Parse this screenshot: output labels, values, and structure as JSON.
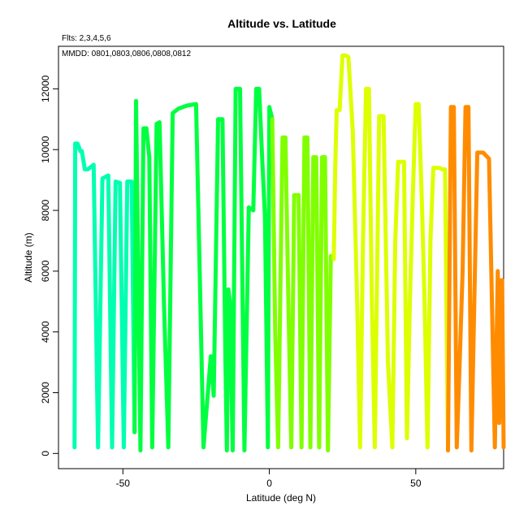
{
  "chart_data": {
    "type": "line",
    "title": "Altitude vs. Latitude",
    "xlabel": "Latitude (deg N)",
    "ylabel": "Altitude (m)",
    "annotations": {
      "fits": "Flts: 2,3,4,5,6",
      "mmdd": "MMDD: 0801,0803,0806,0808,0812"
    },
    "xlim": [
      -72,
      80
    ],
    "ylim": [
      -500,
      13400
    ],
    "x_ticks": [
      -50,
      0,
      50
    ],
    "y_ticks": [
      0,
      2000,
      4000,
      6000,
      8000,
      10000,
      12000
    ],
    "grid": false,
    "series": [
      {
        "color": "#00ffb0",
        "x": [
          -66.5,
          -66.3,
          -65.5,
          -64.5,
          -64,
          -63,
          -62,
          -60,
          -58.5,
          -57,
          -56,
          -55,
          -53.7,
          -52.5,
          -51,
          -49.7,
          -48.5,
          -47,
          -46
        ],
        "y": [
          200,
          10200,
          10200,
          9950,
          9950,
          9350,
          9350,
          9500,
          200,
          9050,
          9100,
          9150,
          200,
          8950,
          8900,
          200,
          8950,
          8950,
          700
        ]
      },
      {
        "color": "#00ff40",
        "x": [
          -46,
          -45.5,
          -44,
          -43,
          -42,
          -41,
          -40,
          -38.5,
          -37.5,
          -36,
          -34.5,
          -33,
          -31,
          -28,
          -25,
          -22.5,
          -20,
          -19,
          -17.5,
          -16,
          -15,
          -14.5,
          -14,
          -13.5,
          -12.5,
          -11.5,
          -10,
          -8.5,
          -7,
          -5.5,
          -4.5,
          -3.5,
          -2.5,
          -1.5,
          -0.5,
          0,
          1
        ],
        "y": [
          700,
          11600,
          100,
          10700,
          10700,
          9750,
          200,
          10850,
          10900,
          5000,
          200,
          11200,
          11350,
          11450,
          11500,
          200,
          3200,
          1900,
          11000,
          11000,
          3100,
          100,
          5400,
          5000,
          100,
          12000,
          12000,
          100,
          8100,
          8000,
          12000,
          12000,
          9800,
          7800,
          200,
          11400,
          11000
        ]
      },
      {
        "color": "#80ff00",
        "x": [
          1,
          2,
          3,
          4.5,
          5.5,
          6.5,
          7.5,
          8.5,
          10,
          11,
          12,
          13,
          14,
          15,
          16,
          17,
          18,
          19,
          20,
          21,
          22
        ],
        "y": [
          11000,
          4000,
          200,
          10400,
          10400,
          5000,
          200,
          8500,
          8500,
          200,
          10400,
          10400,
          200,
          9750,
          9750,
          200,
          9750,
          9750,
          100,
          6500,
          6400
        ]
      },
      {
        "color": "#ddff00",
        "x": [
          22,
          22.5,
          23,
          24,
          25,
          26,
          27,
          28.5,
          30,
          31,
          32,
          33,
          34,
          35,
          36,
          37.5,
          39,
          40.5,
          42,
          43,
          44,
          45,
          46,
          47,
          48,
          49,
          50,
          51,
          52,
          53,
          54,
          55,
          56,
          57,
          58,
          59,
          60,
          61
        ],
        "y": [
          6400,
          9400,
          11300,
          11300,
          13100,
          13100,
          13050,
          10600,
          5000,
          200,
          7000,
          12000,
          12000,
          5000,
          200,
          11100,
          11100,
          3000,
          200,
          7000,
          9600,
          9600,
          9600,
          500,
          5000,
          8500,
          11500,
          11500,
          8500,
          5000,
          200,
          7000,
          9400,
          9400,
          9400,
          9350,
          9350,
          100
        ]
      },
      {
        "color": "#ff8c00",
        "x": [
          61,
          62,
          63,
          64,
          65,
          66,
          67,
          68,
          69,
          70,
          71,
          72,
          73,
          74,
          75,
          76,
          77,
          78,
          78.5,
          79,
          79.5,
          80
        ],
        "y": [
          100,
          11400,
          11400,
          200,
          3000,
          6000,
          11400,
          11400,
          100,
          5000,
          9900,
          9900,
          9900,
          9800,
          9700,
          5000,
          200,
          6000,
          1000,
          5700,
          5700,
          200
        ]
      }
    ]
  }
}
